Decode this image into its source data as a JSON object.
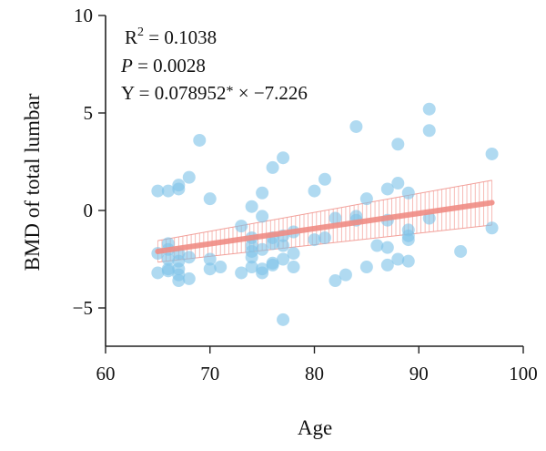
{
  "chart_data": {
    "type": "scatter",
    "xlabel": "Age",
    "ylabel": "BMD of total lumbar",
    "xlim": [
      60,
      100
    ],
    "ylim": [
      -7,
      10
    ],
    "x_ticks": [
      "60",
      "70",
      "80",
      "90",
      "100"
    ],
    "y_ticks": [
      "10",
      "5",
      "0",
      "−5"
    ],
    "grid": false,
    "annotations": {
      "r2_base": "R",
      "r2_sup": "2",
      "r2_rest": " = 0.1038",
      "p_letter": "P",
      "p_rest": " = 0.0028",
      "eq_part1": "Y = 0.078952",
      "eq_star": "*",
      "eq_part2": " × −7.226"
    },
    "fit": {
      "x": [
        65,
        97
      ],
      "y": [
        -2.1,
        0.4
      ]
    },
    "confidence_band": {
      "x": [
        65,
        97
      ],
      "upper": [
        -1.55,
        1.55
      ],
      "lower": [
        -2.65,
        -0.75
      ]
    },
    "points": [
      {
        "x": 65,
        "y": 1.0
      },
      {
        "x": 65,
        "y": -2.2
      },
      {
        "x": 65,
        "y": -3.2
      },
      {
        "x": 66,
        "y": 1.0
      },
      {
        "x": 66,
        "y": -1.7
      },
      {
        "x": 66,
        "y": -2.5
      },
      {
        "x": 66,
        "y": -3.0
      },
      {
        "x": 66,
        "y": -3.1
      },
      {
        "x": 66,
        "y": -2.0
      },
      {
        "x": 67,
        "y": 1.1
      },
      {
        "x": 67,
        "y": 1.3
      },
      {
        "x": 67,
        "y": -2.2
      },
      {
        "x": 67,
        "y": -2.6
      },
      {
        "x": 67,
        "y": -3.0
      },
      {
        "x": 67,
        "y": -3.3
      },
      {
        "x": 67,
        "y": -3.6
      },
      {
        "x": 68,
        "y": 1.7
      },
      {
        "x": 68,
        "y": -2.4
      },
      {
        "x": 68,
        "y": -3.5
      },
      {
        "x": 69,
        "y": 3.6
      },
      {
        "x": 70,
        "y": 0.6
      },
      {
        "x": 70,
        "y": -2.5
      },
      {
        "x": 70,
        "y": -3.0
      },
      {
        "x": 71,
        "y": -2.9
      },
      {
        "x": 73,
        "y": -0.8
      },
      {
        "x": 73,
        "y": -3.2
      },
      {
        "x": 74,
        "y": 0.2
      },
      {
        "x": 74,
        "y": -1.4
      },
      {
        "x": 74,
        "y": -1.8
      },
      {
        "x": 74,
        "y": -2.1
      },
      {
        "x": 74,
        "y": -2.4
      },
      {
        "x": 74,
        "y": -2.9
      },
      {
        "x": 75,
        "y": 0.9
      },
      {
        "x": 75,
        "y": -0.3
      },
      {
        "x": 75,
        "y": -2.0
      },
      {
        "x": 75,
        "y": -3.0
      },
      {
        "x": 75,
        "y": -3.2
      },
      {
        "x": 76,
        "y": 2.2
      },
      {
        "x": 76,
        "y": -1.4
      },
      {
        "x": 76,
        "y": -1.7
      },
      {
        "x": 76,
        "y": -2.7
      },
      {
        "x": 76,
        "y": -2.8
      },
      {
        "x": 77,
        "y": 2.7
      },
      {
        "x": 77,
        "y": -1.3
      },
      {
        "x": 77,
        "y": -1.8
      },
      {
        "x": 77,
        "y": -2.5
      },
      {
        "x": 77,
        "y": -5.6
      },
      {
        "x": 78,
        "y": -1.1
      },
      {
        "x": 78,
        "y": -2.2
      },
      {
        "x": 78,
        "y": -2.9
      },
      {
        "x": 80,
        "y": 1.0
      },
      {
        "x": 80,
        "y": -1.5
      },
      {
        "x": 81,
        "y": 1.6
      },
      {
        "x": 81,
        "y": -1.4
      },
      {
        "x": 82,
        "y": -0.4
      },
      {
        "x": 82,
        "y": -3.6
      },
      {
        "x": 83,
        "y": -3.3
      },
      {
        "x": 84,
        "y": 4.3
      },
      {
        "x": 84,
        "y": -0.3
      },
      {
        "x": 84,
        "y": -0.5
      },
      {
        "x": 85,
        "y": 0.6
      },
      {
        "x": 85,
        "y": -2.9
      },
      {
        "x": 86,
        "y": -1.8
      },
      {
        "x": 87,
        "y": 1.1
      },
      {
        "x": 87,
        "y": -0.5
      },
      {
        "x": 87,
        "y": -1.9
      },
      {
        "x": 87,
        "y": -2.8
      },
      {
        "x": 88,
        "y": 3.4
      },
      {
        "x": 88,
        "y": 1.4
      },
      {
        "x": 88,
        "y": -2.5
      },
      {
        "x": 89,
        "y": 0.9
      },
      {
        "x": 89,
        "y": -1.0
      },
      {
        "x": 89,
        "y": -1.3
      },
      {
        "x": 89,
        "y": -1.5
      },
      {
        "x": 89,
        "y": -2.6
      },
      {
        "x": 91,
        "y": 5.2
      },
      {
        "x": 91,
        "y": 4.1
      },
      {
        "x": 91,
        "y": -0.4
      },
      {
        "x": 94,
        "y": -2.1
      },
      {
        "x": 97,
        "y": 2.9
      },
      {
        "x": 97,
        "y": -0.9
      }
    ]
  }
}
